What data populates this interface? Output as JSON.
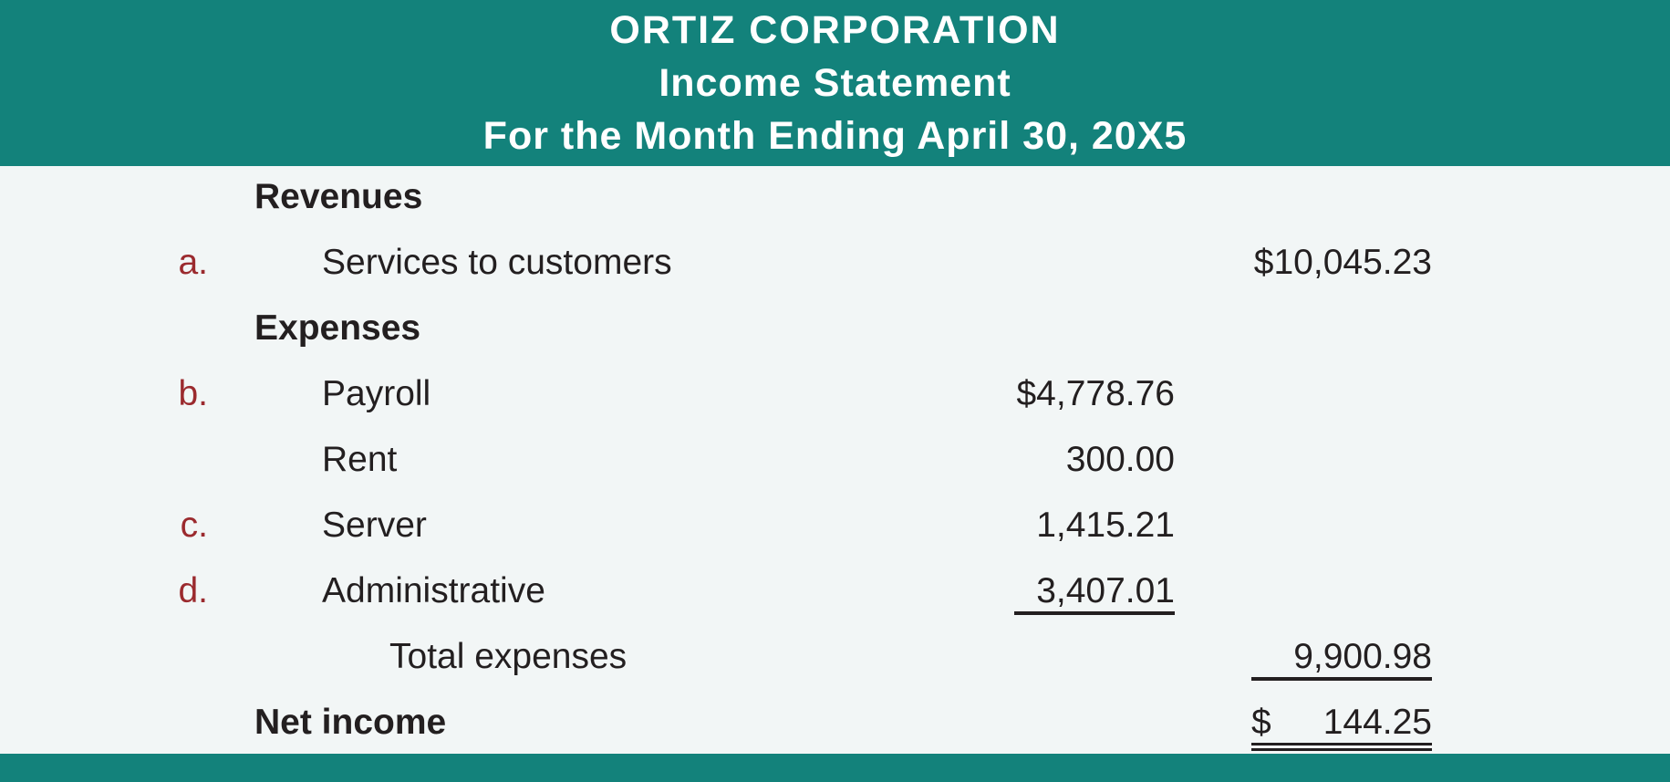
{
  "header": {
    "company": "ORTIZ CORPORATION",
    "statement": "Income Statement",
    "period": "For the Month Ending April 30, 20X5"
  },
  "colors": {
    "header_bg": "#13827b",
    "body_bg": "#f2f6f6",
    "marker": "#9b2a2e",
    "text": "#231f20"
  },
  "revenues": {
    "heading": "Revenues",
    "items": [
      {
        "marker": "a.",
        "label": "Services to customers",
        "amount": "$10,045.23"
      }
    ]
  },
  "expenses": {
    "heading": "Expenses",
    "items": [
      {
        "marker": "b.",
        "label": "Payroll",
        "amount": "$4,778.76"
      },
      {
        "marker": "",
        "label": "Rent",
        "amount": "300.00"
      },
      {
        "marker": "c.",
        "label": "Server",
        "amount": "1,415.21"
      },
      {
        "marker": "d.",
        "label": "Administrative",
        "amount": "3,407.01"
      }
    ],
    "total_label": "Total expenses",
    "total_amount": "9,900.98"
  },
  "net_income": {
    "label": "Net income",
    "currency": "$",
    "amount": "144.25"
  }
}
